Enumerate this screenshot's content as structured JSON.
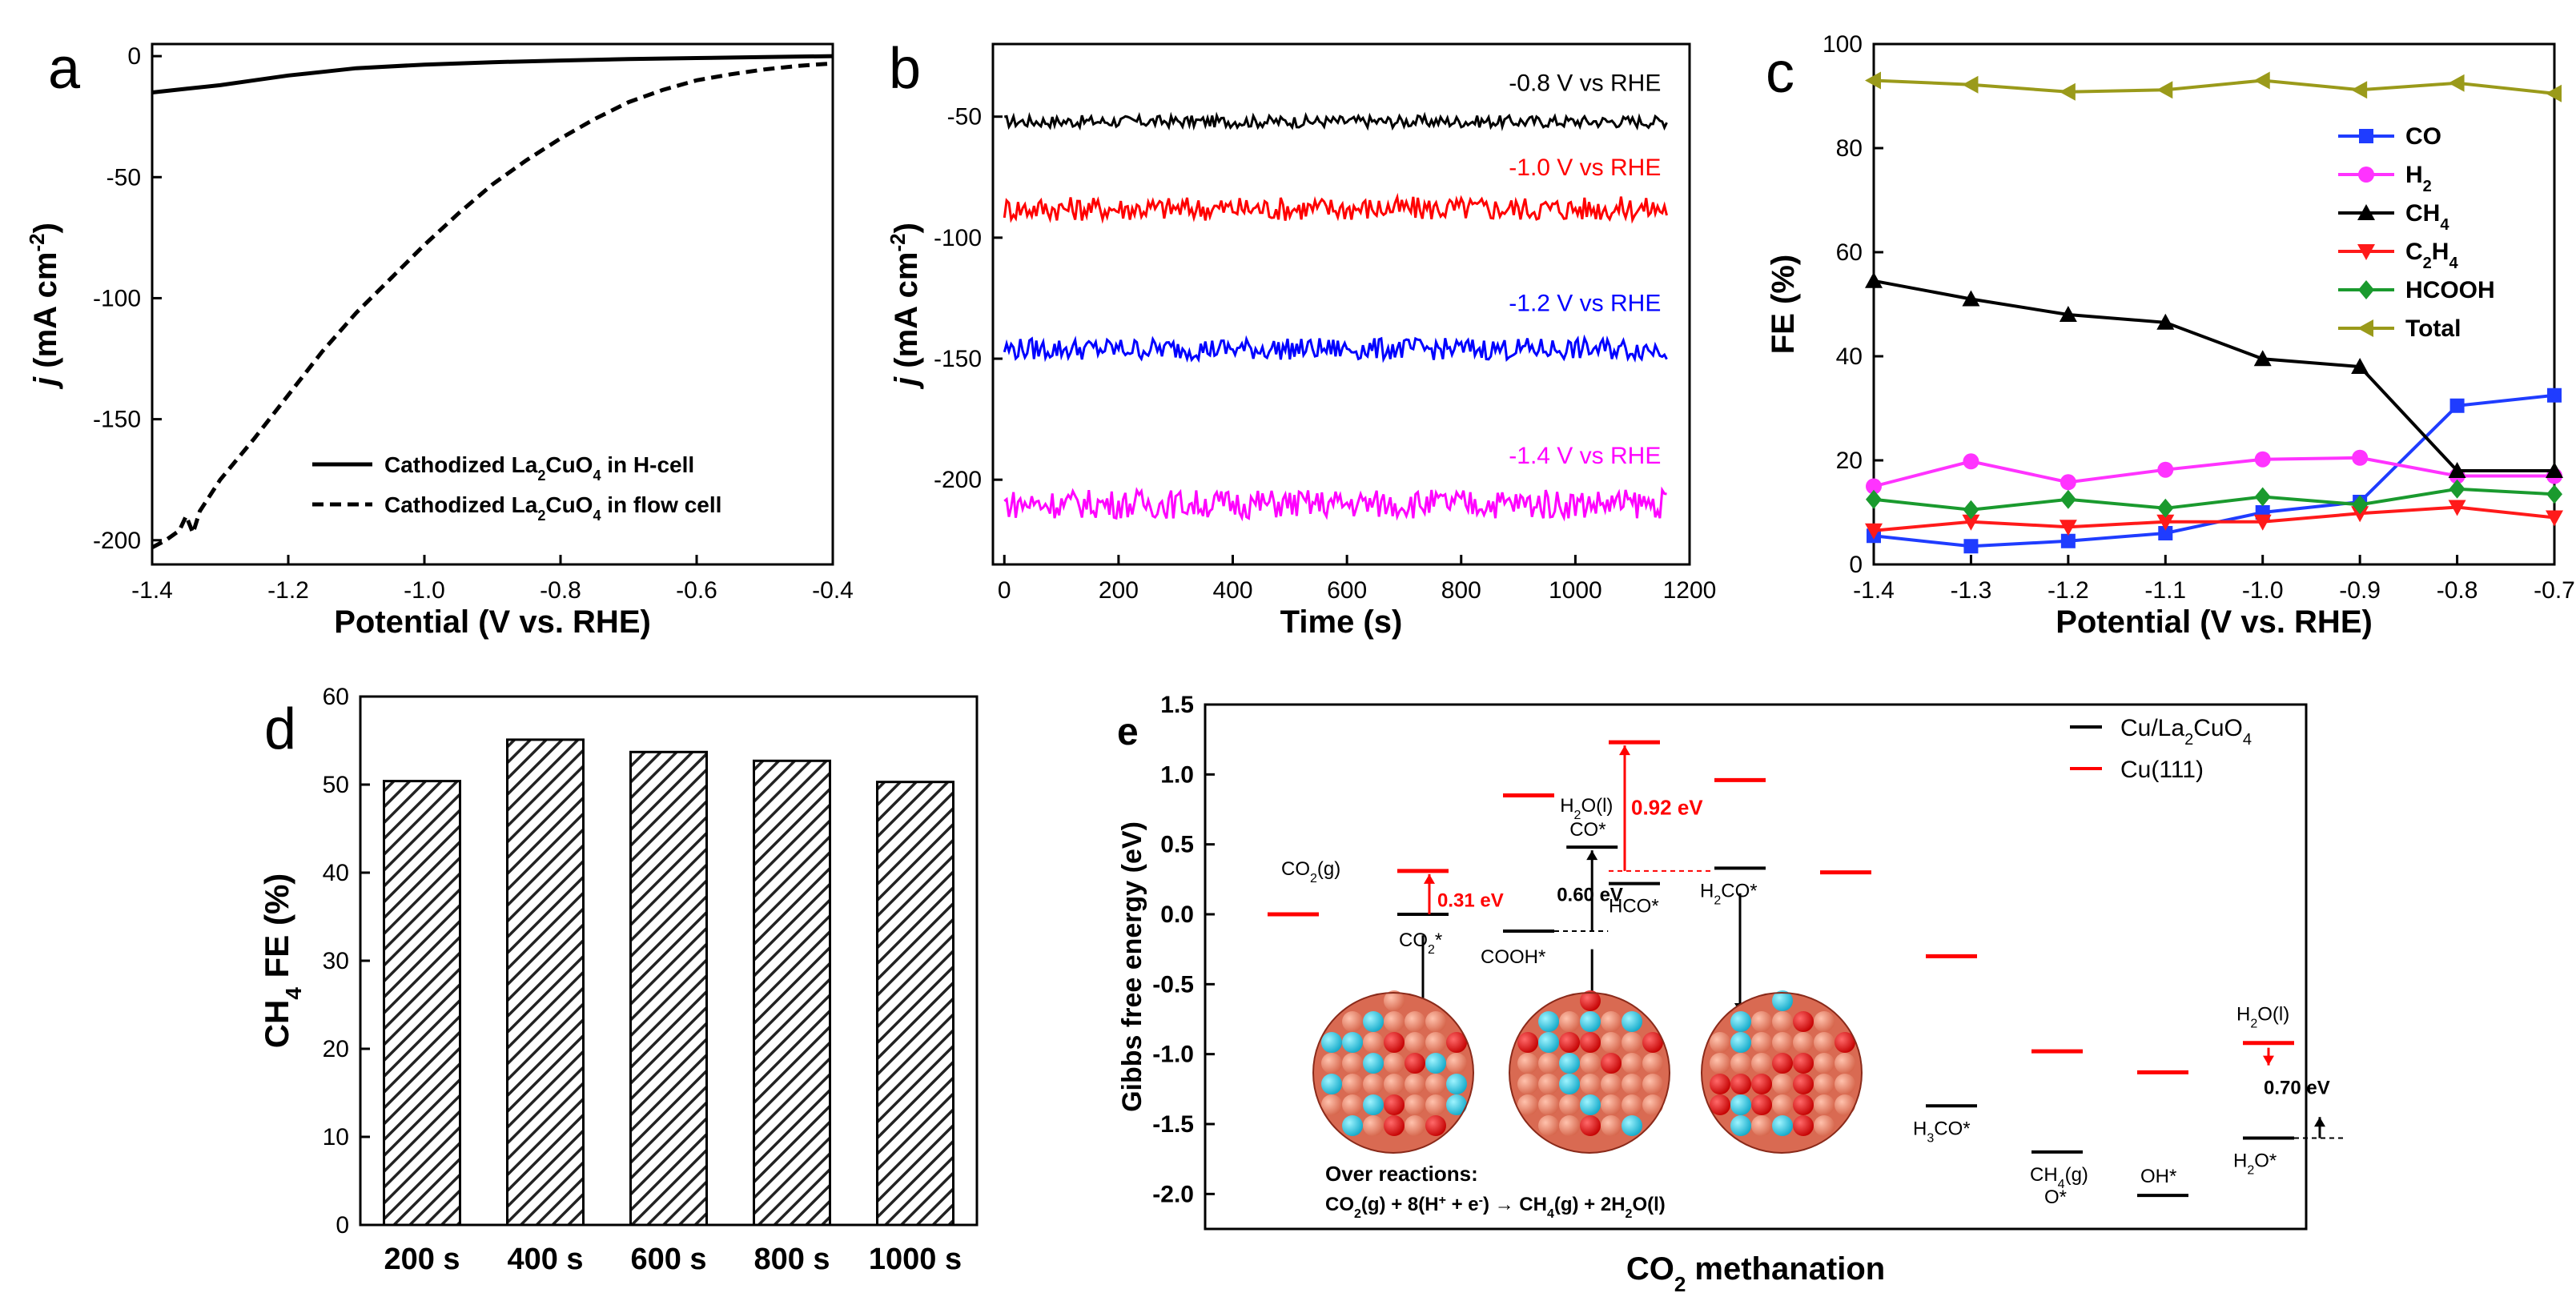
{
  "chart_data": [
    {
      "panel": "a",
      "type": "line",
      "panel_label": "a",
      "xlabel": "Potential (V vs. RHE)",
      "ylabel": "j (mA cm-2)",
      "ylabel_parts": {
        "var": "j",
        "unit": " (mA cm",
        "sup": "-2",
        "close": ")"
      },
      "xlim": [
        -1.4,
        -0.4
      ],
      "ylim": [
        -210,
        5
      ],
      "xticks": [
        -1.4,
        -1.2,
        -1.0,
        -0.8,
        -0.6,
        -0.4
      ],
      "xtick_labels": [
        "-1.4",
        "-1.2",
        "-1.0",
        "-0.8",
        "-0.6",
        "-0.4"
      ],
      "yticks": [
        0,
        -50,
        -100,
        -150,
        -200
      ],
      "ytick_labels": [
        "0",
        "-50",
        "-100",
        "-150",
        "-200"
      ],
      "legend": "bottom-right",
      "series": [
        {
          "name": "Cathodized La2CuO4 in H-cell",
          "name_parts": {
            "pre": "Cathodized La",
            "sub1": "2",
            "mid": "CuO",
            "sub2": "4",
            "post": " in H-cell"
          },
          "style": "solid",
          "color": "#000000",
          "x": [
            -1.4,
            -1.35,
            -1.3,
            -1.25,
            -1.2,
            -1.15,
            -1.1,
            -1.0,
            -0.9,
            -0.8,
            -0.7,
            -0.6,
            -0.5,
            -0.4
          ],
          "y": [
            -15,
            -13.5,
            -12,
            -10,
            -8,
            -6.5,
            -5,
            -3.5,
            -2.5,
            -1.8,
            -1.2,
            -0.8,
            -0.4,
            0
          ]
        },
        {
          "name": "Cathodized La2CuO4 in flow cell",
          "name_parts": {
            "pre": "Cathodized La",
            "sub1": "2",
            "mid": "CuO",
            "sub2": "4",
            "post": " in flow cell"
          },
          "style": "dashed",
          "color": "#000000",
          "x": [
            -1.4,
            -1.38,
            -1.36,
            -1.35,
            -1.34,
            -1.33,
            -1.3,
            -1.25,
            -1.2,
            -1.15,
            -1.1,
            -1.05,
            -1.0,
            -0.95,
            -0.9,
            -0.85,
            -0.8,
            -0.75,
            -0.7,
            -0.65,
            -0.6,
            -0.55,
            -0.5,
            -0.45,
            -0.4
          ],
          "y": [
            -203,
            -200,
            -196,
            -190,
            -197,
            -188,
            -175,
            -158,
            -140,
            -122,
            -106,
            -92,
            -78,
            -65,
            -53,
            -43,
            -34,
            -26,
            -19,
            -14,
            -10,
            -7.5,
            -5.5,
            -4,
            -3
          ]
        }
      ]
    },
    {
      "panel": "b",
      "type": "line",
      "panel_label": "b",
      "xlabel": "Time (s)",
      "ylabel": "j (mA cm-2)",
      "ylabel_parts": {
        "var": "j",
        "unit": " (mA cm",
        "sup": "-2",
        "close": ")"
      },
      "xlim": [
        -20,
        1200
      ],
      "ylim": [
        -235,
        -20
      ],
      "xticks": [
        0,
        200,
        400,
        600,
        800,
        1000,
        1200
      ],
      "xtick_labels": [
        "0",
        "200",
        "400",
        "600",
        "800",
        "1000",
        "1200"
      ],
      "yticks": [
        -50,
        -100,
        -150,
        -200
      ],
      "ytick_labels": [
        "-50",
        "-100",
        "-150",
        "-200"
      ],
      "series": [
        {
          "name": "-0.8 V vs RHE",
          "color": "#000000",
          "mean": -52,
          "noise": 2.5,
          "t_end": 1160
        },
        {
          "name": "-1.0 V vs RHE",
          "color": "#ff0000",
          "mean": -88,
          "noise": 5,
          "t_end": 1160
        },
        {
          "name": "-1.2 V vs RHE",
          "color": "#0000ff",
          "mean": -146,
          "noise": 4.5,
          "t_end": 1160
        },
        {
          "name": "-1.4 V vs RHE",
          "color": "#ff00ff",
          "mean": -210,
          "noise": 6,
          "t_end": 1160
        }
      ],
      "annotations": [
        {
          "text": "-0.8 V vs RHE",
          "color": "#000000",
          "x": 1150,
          "y": -36
        },
        {
          "text": "-1.0 V vs RHE",
          "color": "#ff0000",
          "x": 1150,
          "y": -71
        },
        {
          "text": "-1.2 V vs RHE",
          "color": "#0000ff",
          "x": 1150,
          "y": -127
        },
        {
          "text": "-1.4 V vs RHE",
          "color": "#ff00ff",
          "x": 1150,
          "y": -190
        }
      ]
    },
    {
      "panel": "c",
      "type": "line",
      "panel_label": "c",
      "xlabel": "Potential (V vs. RHE)",
      "ylabel": "FE (%)",
      "xlim": [
        -1.4,
        -0.7
      ],
      "ylim": [
        0,
        100
      ],
      "xticks": [
        -1.4,
        -1.3,
        -1.2,
        -1.1,
        -1.0,
        -0.9,
        -0.8,
        -0.7
      ],
      "xtick_labels": [
        "-1.4",
        "-1.3",
        "-1.2",
        "-1.1",
        "-1.0",
        "-0.9",
        "-0.8",
        "-0.7"
      ],
      "yticks": [
        0,
        20,
        40,
        60,
        80,
        100
      ],
      "ytick_labels": [
        "0",
        "20",
        "40",
        "60",
        "80",
        "100"
      ],
      "legend": "right",
      "categories": [
        -1.4,
        -1.3,
        -1.2,
        -1.1,
        -1.0,
        -0.9,
        -0.8,
        -0.7
      ],
      "series": [
        {
          "name": "CO",
          "label_main": "CO",
          "label_sub": "",
          "color": "#1f3cff",
          "marker": "square",
          "values": [
            5.5,
            3.5,
            4.5,
            6,
            10,
            12,
            30.5,
            32.5
          ]
        },
        {
          "name": "H2",
          "label_main": "H",
          "label_sub": "2",
          "color": "#ff33ff",
          "marker": "circle",
          "values": [
            15,
            19.8,
            15.8,
            18.2,
            20.2,
            20.5,
            17,
            17
          ]
        },
        {
          "name": "CH4",
          "label_main": "CH",
          "label_sub": "4",
          "color": "#000000",
          "marker": "triangle-up",
          "values": [
            54.5,
            51,
            48,
            46.5,
            39.5,
            38,
            18,
            18
          ]
        },
        {
          "name": "C2H4",
          "label_main": "C",
          "label_sub": "2",
          "label_main2": "H",
          "label_sub2": "4",
          "color": "#ff1a1a",
          "marker": "triangle-down",
          "values": [
            6.5,
            8.2,
            7.2,
            8.2,
            8.2,
            9.8,
            11,
            9
          ]
        },
        {
          "name": "HCOOH",
          "label_main": "HCOOH",
          "label_sub": "",
          "color": "#1a9a2e",
          "marker": "diamond",
          "values": [
            12.5,
            10.5,
            12.5,
            10.8,
            13,
            11.5,
            14.5,
            13.5
          ]
        },
        {
          "name": "Total",
          "label_main": "Total",
          "label_sub": "",
          "color": "#9a9a1a",
          "marker": "triangle-left",
          "values": [
            93,
            92.2,
            90.8,
            91.2,
            93,
            91.2,
            92.5,
            90.5
          ]
        }
      ]
    },
    {
      "panel": "d",
      "type": "bar",
      "panel_label": "d",
      "ylabel": "CH4 FE (%)",
      "ylabel_parts": {
        "pre": "CH",
        "sub": "4",
        "post": " FE (%)"
      },
      "xlabel": "",
      "categories": [
        "200 s",
        "400 s",
        "600 s",
        "800 s",
        "1000 s"
      ],
      "values": [
        50.4,
        55.1,
        53.7,
        52.7,
        50.3
      ],
      "ylim": [
        0,
        60
      ],
      "yticks": [
        0,
        10,
        20,
        30,
        40,
        50,
        60
      ],
      "ytick_labels": [
        "0",
        "10",
        "20",
        "30",
        "40",
        "50",
        "60"
      ],
      "bar_fill": "hatched"
    },
    {
      "panel": "e",
      "type": "diagram",
      "panel_label": "e",
      "xlabel": "CO2 methanation",
      "xlabel_parts": {
        "pre": "CO",
        "sub": "2",
        "post": " methanation"
      },
      "ylabel": "Gibbs free energy (eV)",
      "ylim": [
        -2.25,
        1.5
      ],
      "yticks": [
        1.5,
        1.0,
        0.5,
        0.0,
        -0.5,
        -1.0,
        -1.5,
        -2.0
      ],
      "ytick_labels": [
        "1.5",
        "1.0",
        "0.5",
        "0.0",
        "-0.5",
        "-1.0",
        "-1.5",
        "-2.0"
      ],
      "legend_entries": [
        {
          "label_pre": "Cu/La",
          "sub1": "2",
          "mid": "CuO",
          "sub2": "4",
          "color": "#000000"
        },
        {
          "label_pre": "Cu(111)",
          "sub1": "",
          "mid": "",
          "sub2": "",
          "color": "#ff0000"
        }
      ],
      "steps_red": [
        {
          "step": 0,
          "energy": 0.0
        },
        {
          "step": 1,
          "energy": 0.31
        },
        {
          "step": 2,
          "energy": 0.85
        },
        {
          "step": 3,
          "energy": 1.23
        },
        {
          "step": 4,
          "energy": 0.96
        },
        {
          "step": 5,
          "energy": 0.3
        },
        {
          "step": 6,
          "energy": -0.3
        },
        {
          "step": 7,
          "energy": -0.98
        },
        {
          "step": 8,
          "energy": -1.13
        },
        {
          "step": 9,
          "energy": -0.92
        }
      ],
      "steps_black": [
        {
          "step": 1,
          "energy": 0.0,
          "label": "CO2*",
          "label_parts": [
            "CO",
            "2",
            "*"
          ]
        },
        {
          "step": 2,
          "energy": -0.12,
          "label": "COOH*",
          "label_parts": [
            "COOH*",
            "",
            ""
          ]
        },
        {
          "step": 2.6,
          "energy": 0.48,
          "label": "CO*",
          "label_parts": [
            "CO*",
            "",
            ""
          ]
        },
        {
          "step": 3,
          "energy": 0.22,
          "label": "HCO*",
          "label_parts": [
            "HCO*",
            "",
            ""
          ]
        },
        {
          "step": 4,
          "energy": 0.33,
          "label": "H2CO*",
          "label_parts": [
            "H",
            "2",
            "CO*"
          ]
        },
        {
          "step": 6,
          "energy": -1.37,
          "label": "H3CO*",
          "label_parts": [
            "H",
            "3",
            "CO*"
          ]
        },
        {
          "step": 7,
          "energy": -1.7,
          "label": "CH4(g) O*",
          "label_parts": [
            "CH",
            "4",
            "(g)"
          ]
        },
        {
          "step": 8,
          "energy": -2.01,
          "label": "OH*",
          "label_parts": [
            "OH*",
            "",
            ""
          ]
        },
        {
          "step": 9,
          "energy": -1.6,
          "label": "H2O*",
          "label_parts": [
            "H",
            "2",
            "O*"
          ]
        }
      ],
      "text_labels": {
        "co2g": [
          "CO",
          "2",
          "(g)"
        ],
        "h2ol_top": [
          "H",
          "2",
          "O(l)"
        ],
        "h2ol_right": [
          "H",
          "2",
          "O(l)"
        ],
        "o_star": "O*"
      },
      "barriers": [
        {
          "text": "0.31 eV",
          "color": "#ff0000"
        },
        {
          "text": "0.60 eV",
          "color": "#000000"
        },
        {
          "text": "0.92 eV",
          "color": "#ff0000"
        },
        {
          "text": "0.70 eV",
          "color": "#000000"
        }
      ],
      "reaction_title": "Over reactions:",
      "reaction_parts": [
        "CO",
        "2",
        "(g) + 8(H",
        "+",
        " + e",
        "-",
        ") → CH",
        "4",
        "(g) + 2H",
        "2",
        "O(l)"
      ]
    }
  ]
}
